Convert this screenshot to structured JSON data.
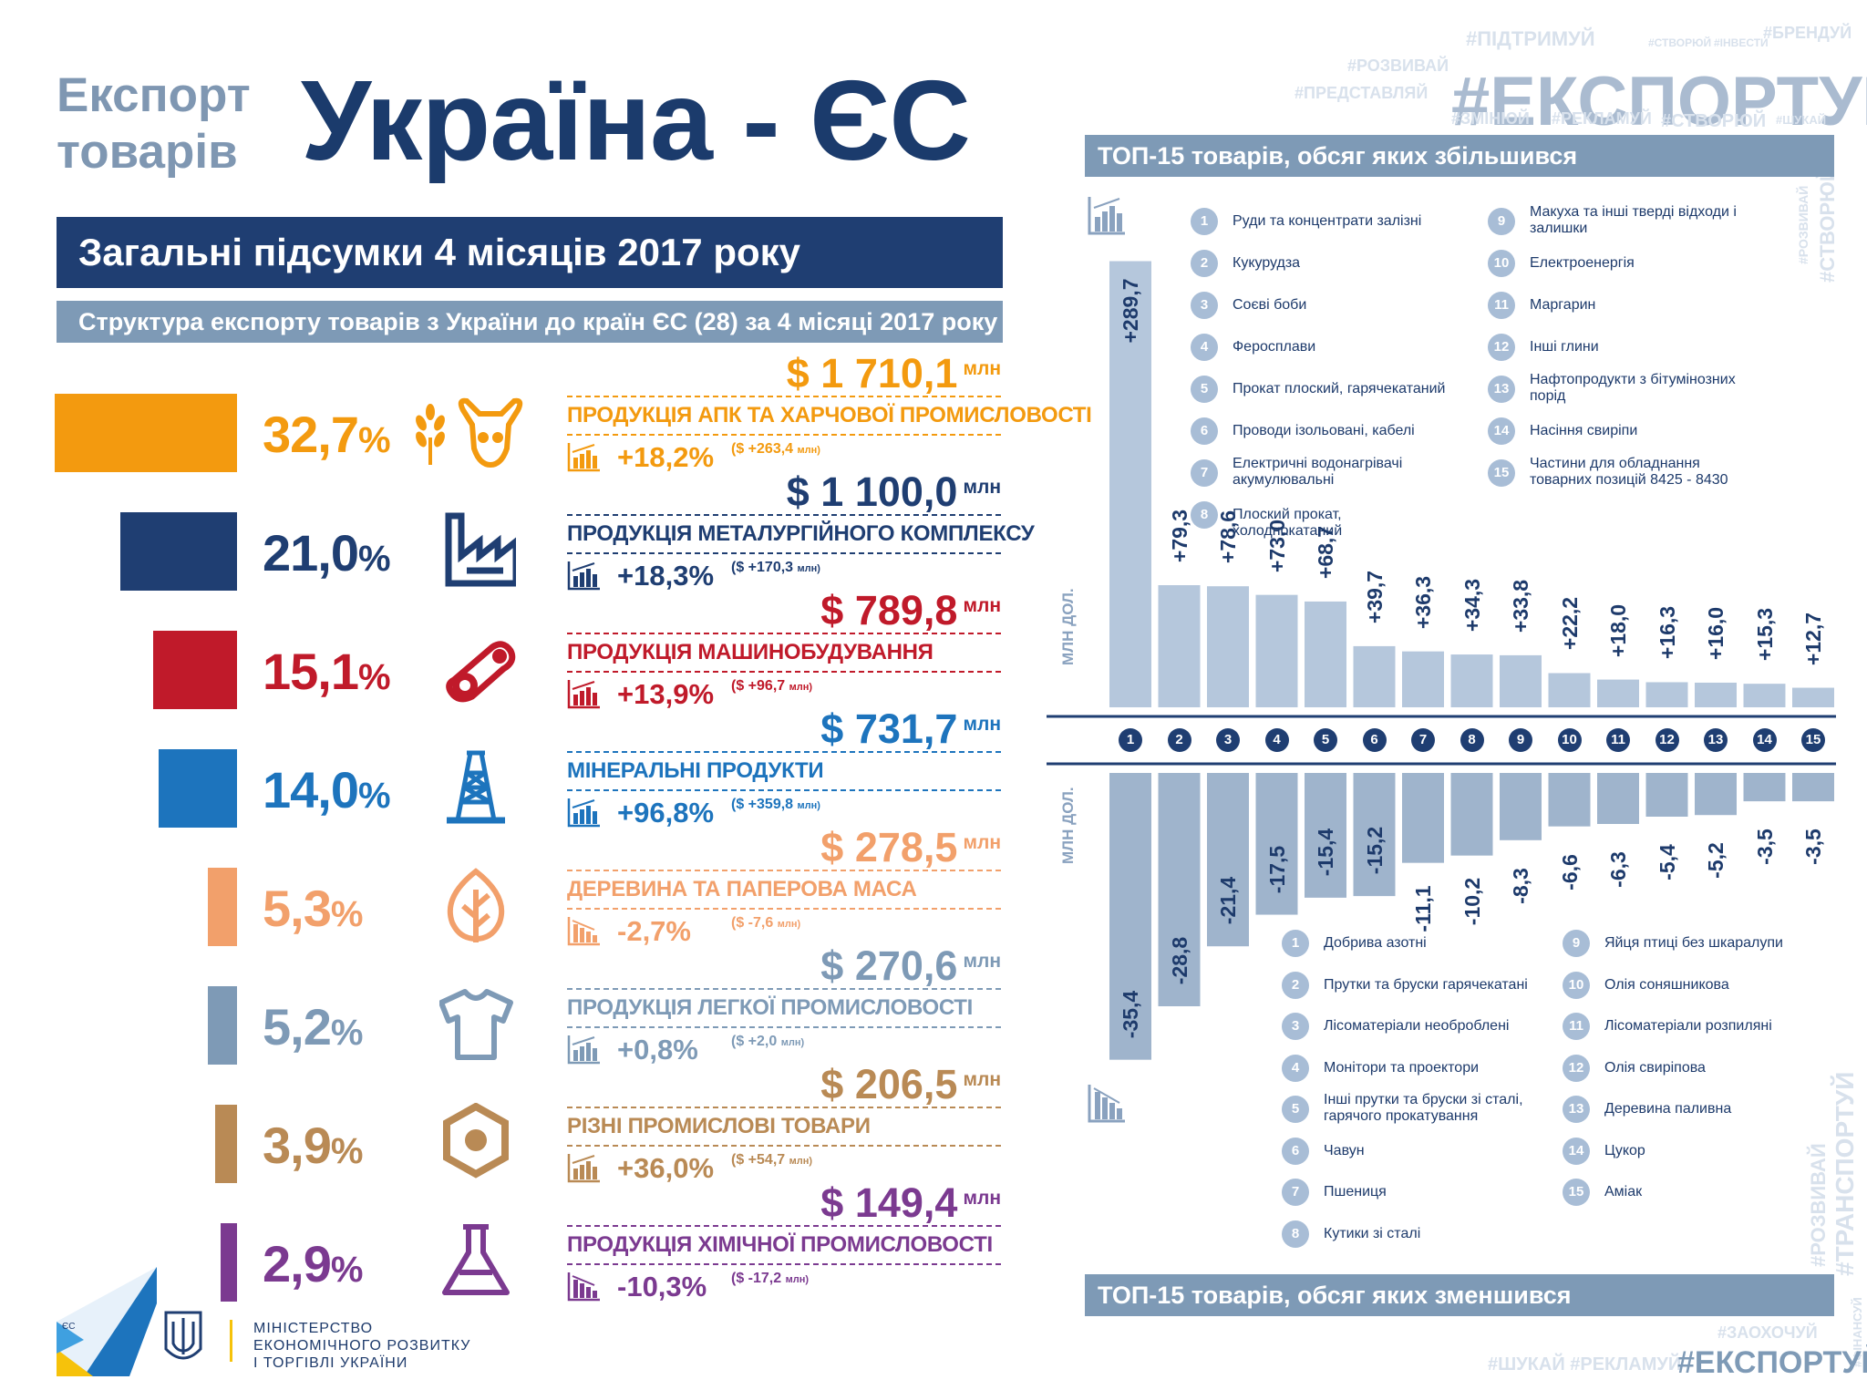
{
  "header": {
    "title_small_1": "Експорт",
    "title_small_2": "товарів",
    "title_big": "Україна - ЄС",
    "subtitle": "Загальні підсумки 4 місяців 2017 року",
    "structure_title": "Структура експорту товарів з України  до країн ЄС (28)  за  4 місяці 2017 року"
  },
  "hashtags": {
    "main": "#ЕКСПОРТУЙ",
    "top_words": [
      "#ПІДТРИМУЙ",
      "#СТВОРЮЙ",
      "#ІНВЕСТИ",
      "#БРЕНДУЙ",
      "#РОЗВИВАЙ",
      "#ПРЕДСТАВЛЯЙ",
      "#ЗМІНЮЙ",
      "#РЕКЛАМУЙ",
      "#СТВОРЮЙ",
      "#ШУКАЙ"
    ],
    "side_top": [
      "#РОЗВИВАЙ",
      "#СТВОРЮЙ"
    ],
    "side_bottom": [
      "#РОЗВИВАЙ",
      "#ТРАНСПОРТУЙ",
      "#ФІНАНСУЙ"
    ],
    "bottom_small": "#ЗАОХОЧУЙ",
    "bottom_line": "#ШУКАЙ #РЕКЛАМУЙ",
    "bottom_main": "#ЕКСПОРТУЙ"
  },
  "footer": {
    "ministry_1": "МІНІСТЕРСТВО",
    "ministry_2": "ЕКОНОМІЧНОГО РОЗВИТКУ",
    "ministry_3": "І ТОРГІВЛІ УКРАЇНИ",
    "logo_letters": "ЄС"
  },
  "chart_data": [
    {
      "type": "bar",
      "title": "Структура експорту товарів з України  до країн ЄС (28)  за  4 місяці 2017 року",
      "unit": "млн",
      "categories": [
        "ПРОДУКЦІЯ АПК ТА ХАРЧОВОЇ ПРОМИСЛОВОСТІ",
        "ПРОДУКЦІЯ МЕТАЛУРГІЙНОГО КОМПЛЕКСУ",
        "ПРОДУКЦІЯ МАШИНОБУДУВАННЯ",
        "МІНЕРАЛЬНІ ПРОДУКТИ",
        "ДЕРЕВИНА ТА ПАПЕРОВА МАСА",
        "ПРОДУКЦІЯ ЛЕГКОЇ ПРОМИСЛОВОСТІ",
        "РІЗНІ ПРОМИСЛОВІ ТОВАРИ",
        "ПРОДУКЦІЯ ХІМІЧНОЇ ПРОМИСЛОВОСТІ"
      ],
      "share_pct": [
        32.7,
        21.0,
        15.1,
        14.0,
        5.3,
        5.2,
        3.9,
        2.9
      ],
      "share_labels": [
        "32,7",
        "21,0",
        "15,1",
        "14,0",
        "5,3",
        "5,2",
        "3,9",
        "2,9"
      ],
      "value_labels": [
        "$ 1 710,1",
        "$ 1 100,0",
        "$ 789,8",
        "$ 731,7",
        "$ 278,5",
        "$ 270,6",
        "$ 206,5",
        "$ 149,4"
      ],
      "values_mln_usd": [
        1710.1,
        1100.0,
        789.8,
        731.7,
        278.5,
        270.6,
        206.5,
        149.4
      ],
      "change_labels": [
        "+18,2%",
        "+18,3%",
        "+13,9%",
        "+96,8%",
        "-2,7%",
        "+0,8%",
        "+36,0%",
        "-10,3%"
      ],
      "change_abs_labels": [
        "($ +263,4",
        "($ +170,3",
        "($ +96,7",
        "($ +359,8",
        "($ -7,6",
        "($ +2,0",
        "($ +54,7",
        "($ -17,2"
      ],
      "change_abs_unit": "млн)",
      "colors": [
        "#f39a0f",
        "#1f3e72",
        "#c01a2a",
        "#1d74bd",
        "#f2a06b",
        "#7e9ab6",
        "#b98a55",
        "#7b3a90"
      ],
      "icons": [
        "wheat-icon",
        "factory-icon",
        "gear-chain-icon",
        "oil-derrick-icon",
        "leaf-icon",
        "tshirt-icon",
        "nut-icon",
        "flask-icon"
      ]
    },
    {
      "type": "bar",
      "title": "ТОП-15 товарів, обсяг яких збільшився",
      "ylabel": "МЛН ДОЛ.",
      "x": [
        1,
        2,
        3,
        4,
        5,
        6,
        7,
        8,
        9,
        10,
        11,
        12,
        13,
        14,
        15
      ],
      "values": [
        289.7,
        79.3,
        78.6,
        73.0,
        68.7,
        39.7,
        36.3,
        34.3,
        33.8,
        22.2,
        18.0,
        16.3,
        16.0,
        15.3,
        12.7
      ],
      "labels": [
        "+289,7",
        "+79,3",
        "+78,6",
        "+73,0",
        "+68,7",
        "+39,7",
        "+36,3",
        "+34,3",
        "+33,8",
        "+22,2",
        "+18,0",
        "+16,3",
        "+16,0",
        "+15,3",
        "+12,7"
      ],
      "legend": [
        "Руди та концентрати залізні",
        "Кукурудза",
        "Соєві боби",
        "Феросплави",
        "Прокат плоский, гарячекатаний",
        "Проводи ізольовані, кабелі",
        "Електричні водонагрівачі акумулювальні",
        "Плоский прокат, холоднокатаний",
        "Макуха та інші тверді відходи і залишки",
        "Електроенергія",
        "Маргарин",
        "Інші глини",
        "Нафтопродукти з бітумінозних порід",
        "Насіння свиріпи",
        "Частини для обладнання товарних позицій 8425 - 8430"
      ]
    },
    {
      "type": "bar",
      "title": "ТОП-15 товарів, обсяг яких зменшився",
      "ylabel": "МЛН ДОЛ.",
      "x": [
        1,
        2,
        3,
        4,
        5,
        6,
        7,
        8,
        9,
        10,
        11,
        12,
        13,
        14,
        15
      ],
      "values": [
        -35.4,
        -28.8,
        -21.4,
        -17.5,
        -15.4,
        -15.2,
        -11.1,
        -10.2,
        -8.3,
        -6.6,
        -6.3,
        -5.4,
        -5.2,
        -3.5,
        -3.5
      ],
      "labels": [
        "-35,4",
        "-28,8",
        "-21,4",
        "-17,5",
        "-15,4",
        "-15,2",
        "-11,1",
        "-10,2",
        "-8,3",
        "-6,6",
        "-6,3",
        "-5,4",
        "-5,2",
        "-3,5",
        "-3,5"
      ],
      "legend": [
        "Добрива азотні",
        "Прутки та бруски гарячекатані",
        "Лісоматеріали необроблені",
        "Монітори та проектори",
        "Інші прутки та бруски зі сталі, гарячого прокатування",
        "Чавун",
        "Пшениця",
        "Кутики зі сталі",
        "Яйця птиці без шкаралупи",
        "Олія соняшникова",
        "Лісоматеріали розпиляні",
        "Олія свиріпова",
        "Деревина паливна",
        "Цукор",
        "Аміак"
      ]
    }
  ]
}
